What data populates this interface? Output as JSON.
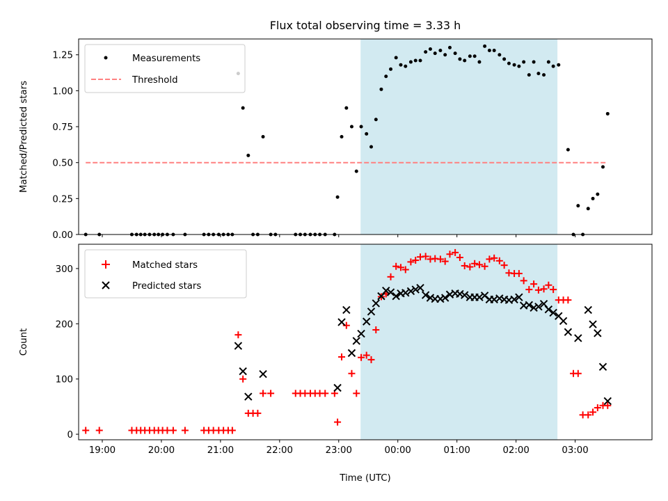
{
  "figure": {
    "title": "Flux total observing time = 3.33 h",
    "xlabel": "Time (UTC)",
    "xtick_labels": [
      "19:00",
      "20:00",
      "21:00",
      "22:00",
      "23:00",
      "00:00",
      "01:00",
      "02:00",
      "03:00"
    ],
    "colors": {
      "shade": "#add8e6",
      "measure": "#000000",
      "threshold": "#ff8080",
      "matched": "#ff0000",
      "predicted": "#000000"
    }
  },
  "chart_data": [
    {
      "type": "scatter",
      "ylabel": "Matched/Predicted stars",
      "xlim": [
        18.6,
        28.3
      ],
      "ylim": [
        0,
        1.36
      ],
      "yticks": [
        0,
        0.25,
        0.5,
        0.75,
        1.0,
        1.25
      ],
      "ytick_labels": [
        "0.00",
        "0.25",
        "0.50",
        "0.75",
        "1.00",
        "1.25"
      ],
      "grid": false,
      "legend_position": "top-left",
      "shaded_interval": [
        23.37,
        26.7
      ],
      "legend": {
        "measurements": "Measurements",
        "threshold": "Threshold"
      },
      "threshold": {
        "y": 0.5,
        "x_start": 18.72,
        "x_end": 27.53
      },
      "points": [
        [
          18.72,
          0.0
        ],
        [
          18.95,
          0.0
        ],
        [
          19.5,
          0.0
        ],
        [
          19.58,
          0.0
        ],
        [
          19.65,
          0.0
        ],
        [
          19.72,
          0.0
        ],
        [
          19.8,
          0.0
        ],
        [
          19.88,
          0.0
        ],
        [
          19.95,
          0.0
        ],
        [
          20.02,
          0.0
        ],
        [
          20.1,
          0.0
        ],
        [
          20.2,
          0.0
        ],
        [
          20.4,
          0.0
        ],
        [
          20.72,
          0.0
        ],
        [
          20.8,
          0.0
        ],
        [
          20.88,
          0.0
        ],
        [
          20.97,
          0.0
        ],
        [
          21.05,
          0.0
        ],
        [
          21.13,
          0.0
        ],
        [
          21.2,
          0.0
        ],
        [
          21.3,
          1.12
        ],
        [
          21.38,
          0.88
        ],
        [
          21.47,
          0.55
        ],
        [
          21.55,
          0.0
        ],
        [
          21.63,
          0.0
        ],
        [
          21.72,
          0.68
        ],
        [
          21.85,
          0.0
        ],
        [
          21.93,
          0.0
        ],
        [
          22.27,
          0.0
        ],
        [
          22.35,
          0.0
        ],
        [
          22.43,
          0.0
        ],
        [
          22.52,
          0.0
        ],
        [
          22.6,
          0.0
        ],
        [
          22.68,
          0.0
        ],
        [
          22.77,
          0.0
        ],
        [
          22.93,
          0.0
        ],
        [
          22.98,
          0.26
        ],
        [
          23.05,
          0.68
        ],
        [
          23.13,
          0.88
        ],
        [
          23.22,
          0.75
        ],
        [
          23.3,
          0.44
        ],
        [
          23.38,
          0.75
        ],
        [
          23.47,
          0.7
        ],
        [
          23.55,
          0.61
        ],
        [
          23.63,
          0.8
        ],
        [
          23.72,
          1.01
        ],
        [
          23.8,
          1.1
        ],
        [
          23.88,
          1.15
        ],
        [
          23.97,
          1.23
        ],
        [
          24.05,
          1.18
        ],
        [
          24.13,
          1.17
        ],
        [
          24.22,
          1.2
        ],
        [
          24.3,
          1.21
        ],
        [
          24.38,
          1.21
        ],
        [
          24.47,
          1.27
        ],
        [
          24.55,
          1.29
        ],
        [
          24.63,
          1.26
        ],
        [
          24.72,
          1.28
        ],
        [
          24.8,
          1.25
        ],
        [
          24.88,
          1.3
        ],
        [
          24.97,
          1.26
        ],
        [
          25.05,
          1.22
        ],
        [
          25.13,
          1.21
        ],
        [
          25.22,
          1.24
        ],
        [
          25.3,
          1.24
        ],
        [
          25.38,
          1.2
        ],
        [
          25.47,
          1.31
        ],
        [
          25.55,
          1.28
        ],
        [
          25.63,
          1.28
        ],
        [
          25.72,
          1.25
        ],
        [
          25.8,
          1.22
        ],
        [
          25.88,
          1.19
        ],
        [
          25.97,
          1.18
        ],
        [
          26.05,
          1.17
        ],
        [
          26.13,
          1.2
        ],
        [
          26.22,
          1.11
        ],
        [
          26.3,
          1.2
        ],
        [
          26.38,
          1.12
        ],
        [
          26.47,
          1.11
        ],
        [
          26.55,
          1.2
        ],
        [
          26.63,
          1.17
        ],
        [
          26.72,
          1.18
        ],
        [
          26.88,
          0.59
        ],
        [
          26.97,
          0.0
        ],
        [
          27.05,
          0.2
        ],
        [
          27.13,
          0.0
        ],
        [
          27.22,
          0.18
        ],
        [
          27.3,
          0.25
        ],
        [
          27.38,
          0.28
        ],
        [
          27.47,
          0.47
        ],
        [
          27.55,
          0.84
        ]
      ]
    },
    {
      "type": "scatter",
      "ylabel": "Count",
      "xlabel": "Time (UTC)",
      "xlim": [
        18.6,
        28.3
      ],
      "ylim": [
        -10,
        344
      ],
      "yticks": [
        0,
        100,
        200,
        300
      ],
      "ytick_labels": [
        "0",
        "100",
        "200",
        "300"
      ],
      "grid": false,
      "legend_position": "top-left",
      "shaded_interval": [
        23.37,
        26.7
      ],
      "series": [
        {
          "name": "Matched stars",
          "marker": "plus",
          "points": [
            [
              18.72,
              7
            ],
            [
              18.95,
              7
            ],
            [
              19.5,
              7
            ],
            [
              19.58,
              7
            ],
            [
              19.65,
              7
            ],
            [
              19.72,
              7
            ],
            [
              19.8,
              7
            ],
            [
              19.88,
              7
            ],
            [
              19.95,
              7
            ],
            [
              20.02,
              7
            ],
            [
              20.1,
              7
            ],
            [
              20.2,
              7
            ],
            [
              20.4,
              7
            ],
            [
              20.72,
              7
            ],
            [
              20.8,
              7
            ],
            [
              20.88,
              7
            ],
            [
              20.97,
              7
            ],
            [
              21.05,
              7
            ],
            [
              21.13,
              7
            ],
            [
              21.2,
              7
            ],
            [
              21.3,
              180
            ],
            [
              21.38,
              100
            ],
            [
              21.47,
              38
            ],
            [
              21.55,
              38
            ],
            [
              21.63,
              38
            ],
            [
              21.72,
              74
            ],
            [
              21.85,
              74
            ],
            [
              22.27,
              74
            ],
            [
              22.35,
              74
            ],
            [
              22.43,
              74
            ],
            [
              22.52,
              74
            ],
            [
              22.6,
              74
            ],
            [
              22.68,
              74
            ],
            [
              22.77,
              74
            ],
            [
              22.93,
              74
            ],
            [
              22.98,
              22
            ],
            [
              23.05,
              140
            ],
            [
              23.13,
              197
            ],
            [
              23.22,
              110
            ],
            [
              23.3,
              74
            ],
            [
              23.38,
              139
            ],
            [
              23.47,
              143
            ],
            [
              23.55,
              135
            ],
            [
              23.63,
              189
            ],
            [
              23.72,
              249
            ],
            [
              23.8,
              254
            ],
            [
              23.88,
              285
            ],
            [
              23.97,
              304
            ],
            [
              24.05,
              302
            ],
            [
              24.13,
              298
            ],
            [
              24.22,
              312
            ],
            [
              24.3,
              315
            ],
            [
              24.38,
              321
            ],
            [
              24.47,
              322
            ],
            [
              24.55,
              317
            ],
            [
              24.63,
              318
            ],
            [
              24.72,
              317
            ],
            [
              24.8,
              313
            ],
            [
              24.88,
              326
            ],
            [
              24.97,
              329
            ],
            [
              25.05,
              320
            ],
            [
              25.13,
              305
            ],
            [
              25.22,
              303
            ],
            [
              25.3,
              309
            ],
            [
              25.38,
              307
            ],
            [
              25.47,
              304
            ],
            [
              25.55,
              317
            ],
            [
              25.63,
              319
            ],
            [
              25.72,
              314
            ],
            [
              25.8,
              306
            ],
            [
              25.88,
              292
            ],
            [
              25.97,
              291
            ],
            [
              26.05,
              291
            ],
            [
              26.13,
              278
            ],
            [
              26.22,
              262
            ],
            [
              26.3,
              272
            ],
            [
              26.38,
              261
            ],
            [
              26.47,
              263
            ],
            [
              26.55,
              270
            ],
            [
              26.63,
              262
            ],
            [
              26.72,
              243
            ],
            [
              26.8,
              243
            ],
            [
              26.88,
              243
            ],
            [
              26.97,
              110
            ],
            [
              27.05,
              110
            ],
            [
              27.13,
              35
            ],
            [
              27.22,
              35
            ],
            [
              27.3,
              40
            ],
            [
              27.38,
              48
            ],
            [
              27.47,
              52
            ],
            [
              27.55,
              52
            ]
          ]
        },
        {
          "name": "Predicted stars",
          "marker": "x",
          "points": [
            [
              21.3,
              160
            ],
            [
              21.38,
              114
            ],
            [
              21.47,
              68
            ],
            [
              21.72,
              109
            ],
            [
              22.98,
              84
            ],
            [
              23.05,
              203
            ],
            [
              23.13,
              225
            ],
            [
              23.22,
              147
            ],
            [
              23.3,
              169
            ],
            [
              23.38,
              182
            ],
            [
              23.47,
              204
            ],
            [
              23.55,
              222
            ],
            [
              23.63,
              237
            ],
            [
              23.72,
              250
            ],
            [
              23.8,
              260
            ],
            [
              23.88,
              257
            ],
            [
              23.97,
              250
            ],
            [
              24.05,
              255
            ],
            [
              24.13,
              256
            ],
            [
              24.22,
              259
            ],
            [
              24.3,
              262
            ],
            [
              24.38,
              265
            ],
            [
              24.47,
              252
            ],
            [
              24.55,
              247
            ],
            [
              24.63,
              245
            ],
            [
              24.72,
              245
            ],
            [
              24.8,
              247
            ],
            [
              24.88,
              253
            ],
            [
              24.97,
              255
            ],
            [
              25.05,
              254
            ],
            [
              25.13,
              252
            ],
            [
              25.22,
              248
            ],
            [
              25.3,
              248
            ],
            [
              25.38,
              248
            ],
            [
              25.47,
              251
            ],
            [
              25.55,
              244
            ],
            [
              25.63,
              244
            ],
            [
              25.72,
              246
            ],
            [
              25.8,
              244
            ],
            [
              25.88,
              243
            ],
            [
              25.97,
              244
            ],
            [
              26.05,
              248
            ],
            [
              26.13,
              233
            ],
            [
              26.22,
              234
            ],
            [
              26.3,
              229
            ],
            [
              26.38,
              231
            ],
            [
              26.47,
              236
            ],
            [
              26.55,
              226
            ],
            [
              26.63,
              220
            ],
            [
              26.72,
              214
            ],
            [
              26.8,
              205
            ],
            [
              26.88,
              185
            ],
            [
              27.05,
              174
            ],
            [
              27.22,
              225
            ],
            [
              27.3,
              199
            ],
            [
              27.38,
              183
            ],
            [
              27.47,
              122
            ],
            [
              27.55,
              60
            ]
          ]
        }
      ]
    }
  ]
}
